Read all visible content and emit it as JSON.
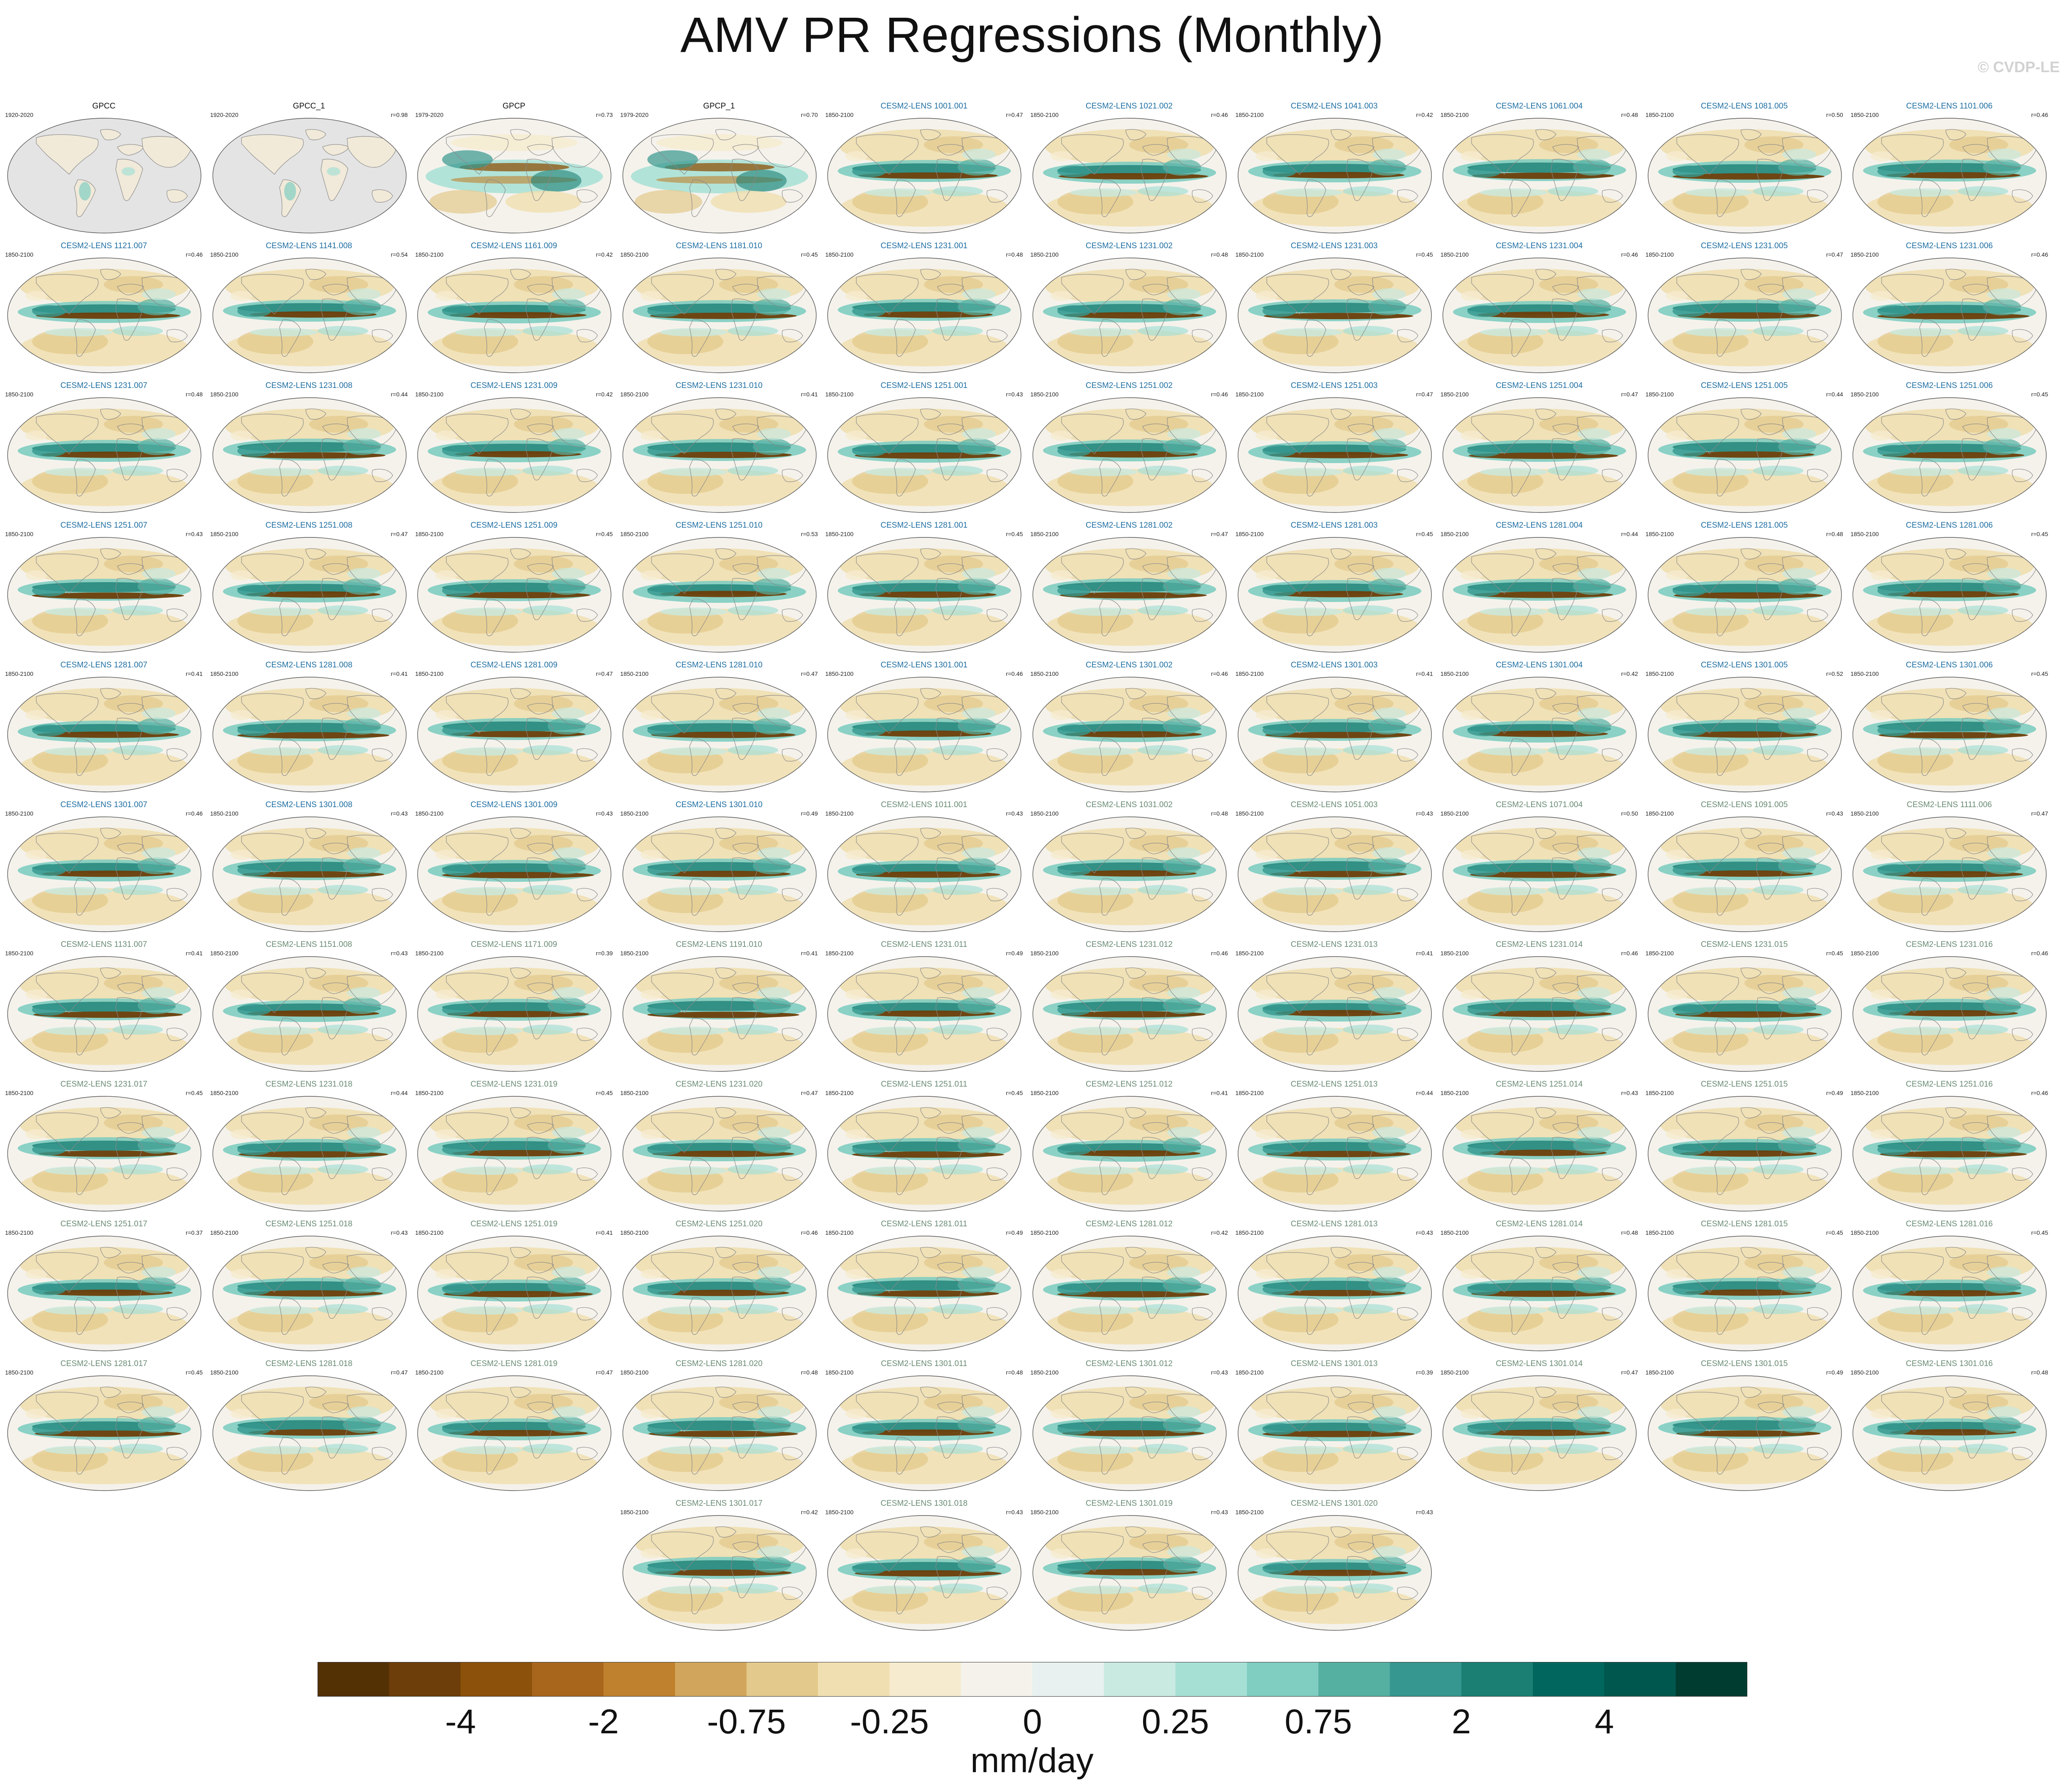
{
  "title": "AMV PR Regressions (Monthly)",
  "watermark": "© CVDP-LE",
  "colors": {
    "obs_title": "#111111",
    "lens_title_blue": "#1f6fa3",
    "lens_title_green": "#6a8c74",
    "land_mask_gray": "#e4e4e4",
    "coastline": "#8a8a8a"
  },
  "chart_data": {
    "type": "heatmap",
    "projection": "Robinson global maps",
    "layout": {
      "columns": 10,
      "rows": 11,
      "last_row_columns": [
        3,
        4,
        5,
        6
      ]
    },
    "panels": [
      {
        "title": "GPCC",
        "period": "1920-2020",
        "r": "",
        "style": "obs-land"
      },
      {
        "title": "GPCC_1",
        "period": "1920-2020",
        "r": "r=0.98",
        "style": "obs-land"
      },
      {
        "title": "GPCP",
        "period": "1979-2020",
        "r": "r=0.73",
        "style": "obs-full"
      },
      {
        "title": "GPCP_1",
        "period": "1979-2020",
        "r": "r=0.70",
        "style": "obs-full"
      },
      {
        "title": "CESM2-LENS 1001.001",
        "period": "1850-2100",
        "r": "r=0.47",
        "style": "model-blue"
      },
      {
        "title": "CESM2-LENS 1021.002",
        "period": "1850-2100",
        "r": "r=0.46",
        "style": "model-blue"
      },
      {
        "title": "CESM2-LENS 1041.003",
        "period": "1850-2100",
        "r": "r=0.42",
        "style": "model-blue"
      },
      {
        "title": "CESM2-LENS 1061.004",
        "period": "1850-2100",
        "r": "r=0.48",
        "style": "model-blue"
      },
      {
        "title": "CESM2-LENS 1081.005",
        "period": "1850-2100",
        "r": "r=0.50",
        "style": "model-blue"
      },
      {
        "title": "CESM2-LENS 1101.006",
        "period": "1850-2100",
        "r": "r=0.46",
        "style": "model-blue"
      },
      {
        "title": "CESM2-LENS 1121.007",
        "period": "1850-2100",
        "r": "r=0.46",
        "style": "model-blue"
      },
      {
        "title": "CESM2-LENS 1141.008",
        "period": "1850-2100",
        "r": "r=0.54",
        "style": "model-blue"
      },
      {
        "title": "CESM2-LENS 1161.009",
        "period": "1850-2100",
        "r": "r=0.42",
        "style": "model-blue"
      },
      {
        "title": "CESM2-LENS 1181.010",
        "period": "1850-2100",
        "r": "r=0.45",
        "style": "model-blue"
      },
      {
        "title": "CESM2-LENS 1231.001",
        "period": "1850-2100",
        "r": "r=0.48",
        "style": "model-blue"
      },
      {
        "title": "CESM2-LENS 1231.002",
        "period": "1850-2100",
        "r": "r=0.48",
        "style": "model-blue"
      },
      {
        "title": "CESM2-LENS 1231.003",
        "period": "1850-2100",
        "r": "r=0.45",
        "style": "model-blue"
      },
      {
        "title": "CESM2-LENS 1231.004",
        "period": "1850-2100",
        "r": "r=0.46",
        "style": "model-blue"
      },
      {
        "title": "CESM2-LENS 1231.005",
        "period": "1850-2100",
        "r": "r=0.47",
        "style": "model-blue"
      },
      {
        "title": "CESM2-LENS 1231.006",
        "period": "1850-2100",
        "r": "r=0.46",
        "style": "model-blue"
      },
      {
        "title": "CESM2-LENS 1231.007",
        "period": "1850-2100",
        "r": "r=0.48",
        "style": "model-blue"
      },
      {
        "title": "CESM2-LENS 1231.008",
        "period": "1850-2100",
        "r": "r=0.44",
        "style": "model-blue"
      },
      {
        "title": "CESM2-LENS 1231.009",
        "period": "1850-2100",
        "r": "r=0.42",
        "style": "model-blue"
      },
      {
        "title": "CESM2-LENS 1231.010",
        "period": "1850-2100",
        "r": "r=0.41",
        "style": "model-blue"
      },
      {
        "title": "CESM2-LENS 1251.001",
        "period": "1850-2100",
        "r": "r=0.43",
        "style": "model-blue"
      },
      {
        "title": "CESM2-LENS 1251.002",
        "period": "1850-2100",
        "r": "r=0.46",
        "style": "model-blue"
      },
      {
        "title": "CESM2-LENS 1251.003",
        "period": "1850-2100",
        "r": "r=0.47",
        "style": "model-blue"
      },
      {
        "title": "CESM2-LENS 1251.004",
        "period": "1850-2100",
        "r": "r=0.47",
        "style": "model-blue"
      },
      {
        "title": "CESM2-LENS 1251.005",
        "period": "1850-2100",
        "r": "r=0.44",
        "style": "model-blue"
      },
      {
        "title": "CESM2-LENS 1251.006",
        "period": "1850-2100",
        "r": "r=0.45",
        "style": "model-blue"
      },
      {
        "title": "CESM2-LENS 1251.007",
        "period": "1850-2100",
        "r": "r=0.43",
        "style": "model-blue"
      },
      {
        "title": "CESM2-LENS 1251.008",
        "period": "1850-2100",
        "r": "r=0.47",
        "style": "model-blue"
      },
      {
        "title": "CESM2-LENS 1251.009",
        "period": "1850-2100",
        "r": "r=0.45",
        "style": "model-blue"
      },
      {
        "title": "CESM2-LENS 1251.010",
        "period": "1850-2100",
        "r": "r=0.53",
        "style": "model-blue"
      },
      {
        "title": "CESM2-LENS 1281.001",
        "period": "1850-2100",
        "r": "r=0.45",
        "style": "model-blue"
      },
      {
        "title": "CESM2-LENS 1281.002",
        "period": "1850-2100",
        "r": "r=0.47",
        "style": "model-blue"
      },
      {
        "title": "CESM2-LENS 1281.003",
        "period": "1850-2100",
        "r": "r=0.45",
        "style": "model-blue"
      },
      {
        "title": "CESM2-LENS 1281.004",
        "period": "1850-2100",
        "r": "r=0.44",
        "style": "model-blue"
      },
      {
        "title": "CESM2-LENS 1281.005",
        "period": "1850-2100",
        "r": "r=0.48",
        "style": "model-blue"
      },
      {
        "title": "CESM2-LENS 1281.006",
        "period": "1850-2100",
        "r": "r=0.45",
        "style": "model-blue"
      },
      {
        "title": "CESM2-LENS 1281.007",
        "period": "1850-2100",
        "r": "r=0.41",
        "style": "model-blue"
      },
      {
        "title": "CESM2-LENS 1281.008",
        "period": "1850-2100",
        "r": "r=0.41",
        "style": "model-blue"
      },
      {
        "title": "CESM2-LENS 1281.009",
        "period": "1850-2100",
        "r": "r=0.47",
        "style": "model-blue"
      },
      {
        "title": "CESM2-LENS 1281.010",
        "period": "1850-2100",
        "r": "r=0.47",
        "style": "model-blue"
      },
      {
        "title": "CESM2-LENS 1301.001",
        "period": "1850-2100",
        "r": "r=0.46",
        "style": "model-blue"
      },
      {
        "title": "CESM2-LENS 1301.002",
        "period": "1850-2100",
        "r": "r=0.46",
        "style": "model-blue"
      },
      {
        "title": "CESM2-LENS 1301.003",
        "period": "1850-2100",
        "r": "r=0.41",
        "style": "model-blue"
      },
      {
        "title": "CESM2-LENS 1301.004",
        "period": "1850-2100",
        "r": "r=0.42",
        "style": "model-blue"
      },
      {
        "title": "CESM2-LENS 1301.005",
        "period": "1850-2100",
        "r": "r=0.52",
        "style": "model-blue"
      },
      {
        "title": "CESM2-LENS 1301.006",
        "period": "1850-2100",
        "r": "r=0.45",
        "style": "model-blue"
      },
      {
        "title": "CESM2-LENS 1301.007",
        "period": "1850-2100",
        "r": "r=0.46",
        "style": "model-blue"
      },
      {
        "title": "CESM2-LENS 1301.008",
        "period": "1850-2100",
        "r": "r=0.43",
        "style": "model-blue"
      },
      {
        "title": "CESM2-LENS 1301.009",
        "period": "1850-2100",
        "r": "r=0.43",
        "style": "model-blue"
      },
      {
        "title": "CESM2-LENS 1301.010",
        "period": "1850-2100",
        "r": "r=0.49",
        "style": "model-blue"
      },
      {
        "title": "CESM2-LENS 1011.001",
        "period": "1850-2100",
        "r": "r=0.43",
        "style": "model-green"
      },
      {
        "title": "CESM2-LENS 1031.002",
        "period": "1850-2100",
        "r": "r=0.48",
        "style": "model-green"
      },
      {
        "title": "CESM2-LENS 1051.003",
        "period": "1850-2100",
        "r": "r=0.43",
        "style": "model-green"
      },
      {
        "title": "CESM2-LENS 1071.004",
        "period": "1850-2100",
        "r": "r=0.50",
        "style": "model-green"
      },
      {
        "title": "CESM2-LENS 1091.005",
        "period": "1850-2100",
        "r": "r=0.43",
        "style": "model-green"
      },
      {
        "title": "CESM2-LENS 1111.006",
        "period": "1850-2100",
        "r": "r=0.47",
        "style": "model-green"
      },
      {
        "title": "CESM2-LENS 1131.007",
        "period": "1850-2100",
        "r": "r=0.41",
        "style": "model-green"
      },
      {
        "title": "CESM2-LENS 1151.008",
        "period": "1850-2100",
        "r": "r=0.43",
        "style": "model-green"
      },
      {
        "title": "CESM2-LENS 1171.009",
        "period": "1850-2100",
        "r": "r=0.39",
        "style": "model-green"
      },
      {
        "title": "CESM2-LENS 1191.010",
        "period": "1850-2100",
        "r": "r=0.41",
        "style": "model-green"
      },
      {
        "title": "CESM2-LENS 1231.011",
        "period": "1850-2100",
        "r": "r=0.49",
        "style": "model-green"
      },
      {
        "title": "CESM2-LENS 1231.012",
        "period": "1850-2100",
        "r": "r=0.46",
        "style": "model-green"
      },
      {
        "title": "CESM2-LENS 1231.013",
        "period": "1850-2100",
        "r": "r=0.41",
        "style": "model-green"
      },
      {
        "title": "CESM2-LENS 1231.014",
        "period": "1850-2100",
        "r": "r=0.46",
        "style": "model-green"
      },
      {
        "title": "CESM2-LENS 1231.015",
        "period": "1850-2100",
        "r": "r=0.45",
        "style": "model-green"
      },
      {
        "title": "CESM2-LENS 1231.016",
        "period": "1850-2100",
        "r": "r=0.46",
        "style": "model-green"
      },
      {
        "title": "CESM2-LENS 1231.017",
        "period": "1850-2100",
        "r": "r=0.45",
        "style": "model-green"
      },
      {
        "title": "CESM2-LENS 1231.018",
        "period": "1850-2100",
        "r": "r=0.44",
        "style": "model-green"
      },
      {
        "title": "CESM2-LENS 1231.019",
        "period": "1850-2100",
        "r": "r=0.45",
        "style": "model-green"
      },
      {
        "title": "CESM2-LENS 1231.020",
        "period": "1850-2100",
        "r": "r=0.47",
        "style": "model-green"
      },
      {
        "title": "CESM2-LENS 1251.011",
        "period": "1850-2100",
        "r": "r=0.45",
        "style": "model-green"
      },
      {
        "title": "CESM2-LENS 1251.012",
        "period": "1850-2100",
        "r": "r=0.41",
        "style": "model-green"
      },
      {
        "title": "CESM2-LENS 1251.013",
        "period": "1850-2100",
        "r": "r=0.44",
        "style": "model-green"
      },
      {
        "title": "CESM2-LENS 1251.014",
        "period": "1850-2100",
        "r": "r=0.43",
        "style": "model-green"
      },
      {
        "title": "CESM2-LENS 1251.015",
        "period": "1850-2100",
        "r": "r=0.49",
        "style": "model-green"
      },
      {
        "title": "CESM2-LENS 1251.016",
        "period": "1850-2100",
        "r": "r=0.46",
        "style": "model-green"
      },
      {
        "title": "CESM2-LENS 1251.017",
        "period": "1850-2100",
        "r": "r=0.37",
        "style": "model-green"
      },
      {
        "title": "CESM2-LENS 1251.018",
        "period": "1850-2100",
        "r": "r=0.43",
        "style": "model-green"
      },
      {
        "title": "CESM2-LENS 1251.019",
        "period": "1850-2100",
        "r": "r=0.41",
        "style": "model-green"
      },
      {
        "title": "CESM2-LENS 1251.020",
        "period": "1850-2100",
        "r": "r=0.46",
        "style": "model-green"
      },
      {
        "title": "CESM2-LENS 1281.011",
        "period": "1850-2100",
        "r": "r=0.49",
        "style": "model-green"
      },
      {
        "title": "CESM2-LENS 1281.012",
        "period": "1850-2100",
        "r": "r=0.42",
        "style": "model-green"
      },
      {
        "title": "CESM2-LENS 1281.013",
        "period": "1850-2100",
        "r": "r=0.43",
        "style": "model-green"
      },
      {
        "title": "CESM2-LENS 1281.014",
        "period": "1850-2100",
        "r": "r=0.48",
        "style": "model-green"
      },
      {
        "title": "CESM2-LENS 1281.015",
        "period": "1850-2100",
        "r": "r=0.45",
        "style": "model-green"
      },
      {
        "title": "CESM2-LENS 1281.016",
        "period": "1850-2100",
        "r": "r=0.45",
        "style": "model-green"
      },
      {
        "title": "CESM2-LENS 1281.017",
        "period": "1850-2100",
        "r": "r=0.45",
        "style": "model-green"
      },
      {
        "title": "CESM2-LENS 1281.018",
        "period": "1850-2100",
        "r": "r=0.47",
        "style": "model-green"
      },
      {
        "title": "CESM2-LENS 1281.019",
        "period": "1850-2100",
        "r": "r=0.47",
        "style": "model-green"
      },
      {
        "title": "CESM2-LENS 1281.020",
        "period": "1850-2100",
        "r": "r=0.48",
        "style": "model-green"
      },
      {
        "title": "CESM2-LENS 1301.011",
        "period": "1850-2100",
        "r": "r=0.48",
        "style": "model-green"
      },
      {
        "title": "CESM2-LENS 1301.012",
        "period": "1850-2100",
        "r": "r=0.43",
        "style": "model-green"
      },
      {
        "title": "CESM2-LENS 1301.013",
        "period": "1850-2100",
        "r": "r=0.39",
        "style": "model-green"
      },
      {
        "title": "CESM2-LENS 1301.014",
        "period": "1850-2100",
        "r": "r=0.47",
        "style": "model-green"
      },
      {
        "title": "CESM2-LENS 1301.015",
        "period": "1850-2100",
        "r": "r=0.49",
        "style": "model-green"
      },
      {
        "title": "CESM2-LENS 1301.016",
        "period": "1850-2100",
        "r": "r=0.48",
        "style": "model-green"
      },
      {
        "title": "CESM2-LENS 1301.017",
        "period": "1850-2100",
        "r": "r=0.42",
        "style": "model-green"
      },
      {
        "title": "CESM2-LENS 1301.018",
        "period": "1850-2100",
        "r": "r=0.43",
        "style": "model-green"
      },
      {
        "title": "CESM2-LENS 1301.019",
        "period": "1850-2100",
        "r": "r=0.43",
        "style": "model-green"
      },
      {
        "title": "CESM2-LENS 1301.020",
        "period": "1850-2100",
        "r": "r=0.43",
        "style": "model-green"
      }
    ],
    "colorbar": {
      "units": "mm/day",
      "tick_labels": [
        "-4",
        "-2",
        "-0.75",
        "-0.25",
        "0",
        "0.25",
        "0.75",
        "2",
        "4"
      ],
      "tick_boundaries": [
        2,
        4,
        6,
        8,
        10,
        12,
        14,
        16,
        18
      ],
      "colors": [
        "#543005",
        "#6d3e0a",
        "#8c510a",
        "#a8661c",
        "#bf812d",
        "#d1a55b",
        "#e3c98b",
        "#f0dfb0",
        "#f6ebcf",
        "#f5f2ec",
        "#e8f1ef",
        "#c9eae1",
        "#a6e0d5",
        "#80cdc1",
        "#56b0a2",
        "#35978f",
        "#1b7f74",
        "#01665e",
        "#00574d",
        "#003c30"
      ]
    }
  }
}
